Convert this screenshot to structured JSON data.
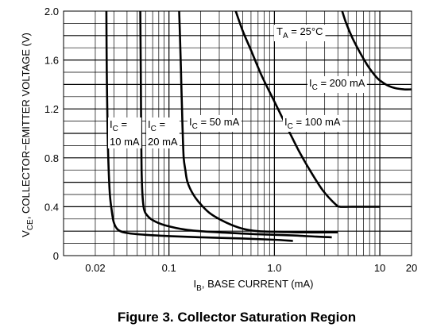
{
  "chart_data": {
    "type": "line",
    "title": "Figure 3. Collector Saturation Region",
    "xlabel": {
      "main": "I",
      "sub": "B",
      "rest": ", BASE CURRENT (mA)"
    },
    "ylabel": {
      "main": "V",
      "sub": "CE",
      "rest": ", COLLECTOR−EMITTER VOLTAGE (V)"
    },
    "x_scale": "log",
    "xlim": [
      0.01,
      20
    ],
    "ylim": [
      0,
      2.0
    ],
    "x_ticks": [
      {
        "value": 0.02,
        "label": "0.02"
      },
      {
        "value": 0.1,
        "label": "0.1"
      },
      {
        "value": 1.0,
        "label": "1.0"
      },
      {
        "value": 10,
        "label": "10"
      },
      {
        "value": 20,
        "label": "20"
      }
    ],
    "y_ticks": [
      {
        "value": 0,
        "label": "0"
      },
      {
        "value": 0.4,
        "label": "0.4"
      },
      {
        "value": 0.8,
        "label": "0.8"
      },
      {
        "value": 1.2,
        "label": "1.2"
      },
      {
        "value": 1.6,
        "label": "1.6"
      },
      {
        "value": 2.0,
        "label": "2.0"
      }
    ],
    "grid": true,
    "annotation": {
      "main": "T",
      "sub": "A",
      "rest": " = 25°C"
    },
    "series": [
      {
        "name": "10 mA",
        "label_lines": [
          {
            "main": "I",
            "sub": "C",
            "rest": " ="
          },
          {
            "main": "10 mA",
            "sub": "",
            "rest": ""
          }
        ],
        "x": [
          0.0255,
          0.0257,
          0.0262,
          0.0268,
          0.0275,
          0.0285,
          0.03,
          0.033,
          0.04,
          0.06,
          0.1,
          0.2,
          0.5,
          1.0,
          1.5
        ],
        "y": [
          2.0,
          1.5,
          1.0,
          0.7,
          0.5,
          0.38,
          0.27,
          0.21,
          0.185,
          0.17,
          0.16,
          0.15,
          0.14,
          0.13,
          0.12
        ]
      },
      {
        "name": "20 mA",
        "label_lines": [
          {
            "main": "I",
            "sub": "C",
            "rest": " ="
          },
          {
            "main": "20 mA",
            "sub": "",
            "rest": ""
          }
        ],
        "x": [
          0.0535,
          0.054,
          0.0545,
          0.055,
          0.056,
          0.058,
          0.062,
          0.07,
          0.09,
          0.15,
          0.3,
          0.7,
          1.5,
          2.5,
          3.5
        ],
        "y": [
          2.0,
          1.5,
          1.0,
          0.7,
          0.5,
          0.38,
          0.33,
          0.29,
          0.25,
          0.21,
          0.19,
          0.175,
          0.165,
          0.155,
          0.15
        ]
      },
      {
        "name": "50 mA",
        "label_lines": [
          {
            "main": "I",
            "sub": "C",
            "rest": " = 50 mA"
          }
        ],
        "x": [
          0.125,
          0.127,
          0.129,
          0.131,
          0.133,
          0.135,
          0.138,
          0.143,
          0.15,
          0.17,
          0.2,
          0.25,
          0.35,
          0.5,
          0.7,
          1.0,
          2.0,
          4.0
        ],
        "y": [
          2.0,
          1.8,
          1.6,
          1.4,
          1.2,
          1.0,
          0.8,
          0.7,
          0.6,
          0.5,
          0.42,
          0.34,
          0.27,
          0.22,
          0.2,
          0.195,
          0.19,
          0.19
        ]
      },
      {
        "name": "100 mA",
        "label_lines": [
          {
            "main": "I",
            "sub": "C",
            "rest": " = 100 mA"
          }
        ],
        "x": [
          0.43,
          0.5,
          0.6,
          0.75,
          1.0,
          1.3,
          1.7,
          2.2,
          2.9,
          3.8,
          4.2,
          5.5,
          7.0,
          10.0
        ],
        "y": [
          2.0,
          1.84,
          1.68,
          1.48,
          1.26,
          1.06,
          0.86,
          0.69,
          0.53,
          0.42,
          0.4,
          0.4,
          0.4,
          0.4
        ]
      },
      {
        "name": "200 mA",
        "label_lines": [
          {
            "main": "I",
            "sub": "C",
            "rest": " = 200 mA"
          }
        ],
        "x": [
          4.4,
          4.8,
          5.5,
          6.5,
          7.6,
          8.5,
          9.5,
          10.5,
          12,
          14,
          17,
          20
        ],
        "y": [
          2.0,
          1.9,
          1.78,
          1.66,
          1.56,
          1.5,
          1.45,
          1.42,
          1.39,
          1.37,
          1.36,
          1.36
        ]
      }
    ]
  }
}
